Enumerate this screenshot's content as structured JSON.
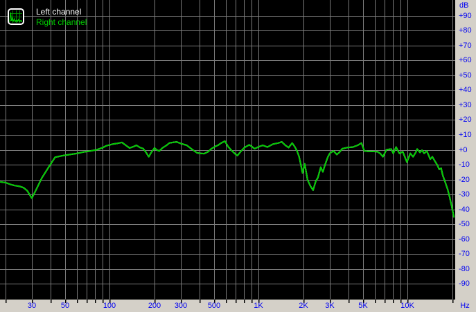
{
  "legend": {
    "items": [
      {
        "label": "Left channel",
        "color": "#ffffff"
      },
      {
        "label": "Right channel",
        "color": "#00cc00"
      }
    ]
  },
  "colors": {
    "plot_background": "#000000",
    "grid": "#7d7d7d",
    "frame_background": "#d4d0c8",
    "axis_text": "#0000f2",
    "tick_mark": "#000000"
  },
  "chart_data": {
    "type": "line",
    "title": "",
    "legend_position": "top-left",
    "grid": true,
    "x_axis": {
      "unit": "Hz",
      "scale": "log",
      "range_hz": [
        18.3,
        20600
      ],
      "gridline_freqs": [
        20,
        30,
        40,
        50,
        60,
        70,
        80,
        90,
        100,
        200,
        300,
        400,
        500,
        600,
        700,
        800,
        900,
        1000,
        2000,
        3000,
        4000,
        5000,
        6000,
        7000,
        8000,
        9000,
        10000,
        20000
      ],
      "tick_labels": [
        {
          "f": 30,
          "label": "30"
        },
        {
          "f": 50,
          "label": "50"
        },
        {
          "f": 100,
          "label": "100"
        },
        {
          "f": 200,
          "label": "200"
        },
        {
          "f": 300,
          "label": "300"
        },
        {
          "f": 500,
          "label": "500"
        },
        {
          "f": 1000,
          "label": "1K"
        },
        {
          "f": 2000,
          "label": "2K"
        },
        {
          "f": 3000,
          "label": "3K"
        },
        {
          "f": 5000,
          "label": "5K"
        },
        {
          "f": 10000,
          "label": "10K"
        }
      ]
    },
    "y_axis": {
      "unit": "dB",
      "range_db": [
        -100,
        100
      ],
      "gridline_step": 10,
      "tick_labels": [
        {
          "db": 90,
          "label": "+90"
        },
        {
          "db": 80,
          "label": "+80"
        },
        {
          "db": 70,
          "label": "+70"
        },
        {
          "db": 60,
          "label": "+60"
        },
        {
          "db": 50,
          "label": "+50"
        },
        {
          "db": 40,
          "label": "+40"
        },
        {
          "db": 30,
          "label": "+30"
        },
        {
          "db": 20,
          "label": "+20"
        },
        {
          "db": 10,
          "label": "+10"
        },
        {
          "db": 0,
          "label": "+0"
        },
        {
          "db": -10,
          "label": "-10"
        },
        {
          "db": -20,
          "label": "-20"
        },
        {
          "db": -30,
          "label": "-30"
        },
        {
          "db": -40,
          "label": "-40"
        },
        {
          "db": -50,
          "label": "-50"
        },
        {
          "db": -60,
          "label": "-60"
        },
        {
          "db": -70,
          "label": "-70"
        },
        {
          "db": -80,
          "label": "-80"
        },
        {
          "db": -90,
          "label": "-90"
        }
      ]
    },
    "series": [
      {
        "name": "Left channel",
        "color": "#ffffff",
        "points": "shared_points_freq_db"
      },
      {
        "name": "Right channel",
        "color": "#00cc00",
        "points": "shared_points_freq_db"
      }
    ],
    "shared_points_freq_db": [
      [
        18.3,
        -21.5
      ],
      [
        20,
        -22
      ],
      [
        21.5,
        -23.2
      ],
      [
        23,
        -24
      ],
      [
        25,
        -24.6
      ],
      [
        26.5,
        -25.5
      ],
      [
        28,
        -27.5
      ],
      [
        30,
        -32.5
      ],
      [
        32,
        -27
      ],
      [
        35,
        -19
      ],
      [
        39,
        -11.5
      ],
      [
        43,
        -5
      ],
      [
        48,
        -4
      ],
      [
        54,
        -3.2
      ],
      [
        60,
        -2.5
      ],
      [
        67,
        -1.5
      ],
      [
        75,
        -0.7
      ],
      [
        82,
        0
      ],
      [
        90,
        1.5
      ],
      [
        95,
        2.7
      ],
      [
        105,
        3.8
      ],
      [
        113,
        4.3
      ],
      [
        121,
        4.9
      ],
      [
        128,
        3.1
      ],
      [
        136,
        1.2
      ],
      [
        145,
        2.2
      ],
      [
        151,
        3
      ],
      [
        160,
        1.5
      ],
      [
        168,
        0.8
      ],
      [
        176,
        -2
      ],
      [
        183,
        -4.7
      ],
      [
        191,
        -1.5
      ],
      [
        200,
        1.2
      ],
      [
        208,
        -0.3
      ],
      [
        215,
        -0.8
      ],
      [
        228,
        1.5
      ],
      [
        240,
        2.9
      ],
      [
        252,
        4.6
      ],
      [
        266,
        4.9
      ],
      [
        281,
        5.3
      ],
      [
        300,
        4.2
      ],
      [
        329,
        3
      ],
      [
        355,
        0.5
      ],
      [
        386,
        -2.1
      ],
      [
        410,
        -2.4
      ],
      [
        430,
        -2.6
      ],
      [
        455,
        -1.5
      ],
      [
        479,
        0.5
      ],
      [
        510,
        2.2
      ],
      [
        533,
        3
      ],
      [
        560,
        4.5
      ],
      [
        594,
        5.8
      ],
      [
        625,
        2
      ],
      [
        662,
        -0.8
      ],
      [
        700,
        -3
      ],
      [
        721,
        -3.9
      ],
      [
        760,
        -1
      ],
      [
        803,
        1.5
      ],
      [
        865,
        3.3
      ],
      [
        900,
        2.2
      ],
      [
        939,
        0.7
      ],
      [
        1000,
        2
      ],
      [
        1065,
        3
      ],
      [
        1145,
        1.8
      ],
      [
        1250,
        3.8
      ],
      [
        1350,
        4.5
      ],
      [
        1430,
        5.3
      ],
      [
        1510,
        3
      ],
      [
        1590,
        1.5
      ],
      [
        1680,
        4.5
      ],
      [
        1750,
        2
      ],
      [
        1810,
        -0.8
      ],
      [
        1870,
        -4.7
      ],
      [
        1920,
        -10
      ],
      [
        1970,
        -15.5
      ],
      [
        2040,
        -9.4
      ],
      [
        2130,
        -20.2
      ],
      [
        2230,
        -24.5
      ],
      [
        2320,
        -27.1
      ],
      [
        2420,
        -21
      ],
      [
        2500,
        -18.7
      ],
      [
        2610,
        -11.7
      ],
      [
        2700,
        -14.8
      ],
      [
        2790,
        -10.1
      ],
      [
        2910,
        -5
      ],
      [
        3000,
        -2.4
      ],
      [
        3180,
        -0.8
      ],
      [
        3350,
        -3.2
      ],
      [
        3500,
        -1.5
      ],
      [
        3640,
        0.7
      ],
      [
        3930,
        1.5
      ],
      [
        4290,
        1.8
      ],
      [
        4620,
        3
      ],
      [
        4900,
        4.5
      ],
      [
        5120,
        -0.8
      ],
      [
        5400,
        -1
      ],
      [
        5670,
        -1
      ],
      [
        6280,
        -1.3
      ],
      [
        6550,
        -2.5
      ],
      [
        6830,
        -4.7
      ],
      [
        7210,
        0
      ],
      [
        7500,
        0.3
      ],
      [
        7760,
        0.5
      ],
      [
        8010,
        -2.4
      ],
      [
        8360,
        1.8
      ],
      [
        8810,
        -2.4
      ],
      [
        9280,
        -1.3
      ],
      [
        9900,
        -8.3
      ],
      [
        10430,
        -2.4
      ],
      [
        10890,
        -4.7
      ],
      [
        11370,
        -1.6
      ],
      [
        11600,
        0.5
      ],
      [
        12110,
        -1.8
      ],
      [
        12500,
        -0.3
      ],
      [
        12900,
        -2.4
      ],
      [
        13460,
        -0.8
      ],
      [
        14190,
        -6.3
      ],
      [
        14660,
        -4.7
      ],
      [
        15140,
        -7.1
      ],
      [
        15800,
        -10.1
      ],
      [
        16310,
        -13.2
      ],
      [
        16800,
        -12.4
      ],
      [
        17210,
        -17.1
      ],
      [
        17770,
        -21
      ],
      [
        18550,
        -26.4
      ],
      [
        19160,
        -31.8
      ],
      [
        19790,
        -38
      ],
      [
        20430,
        -45
      ]
    ]
  }
}
